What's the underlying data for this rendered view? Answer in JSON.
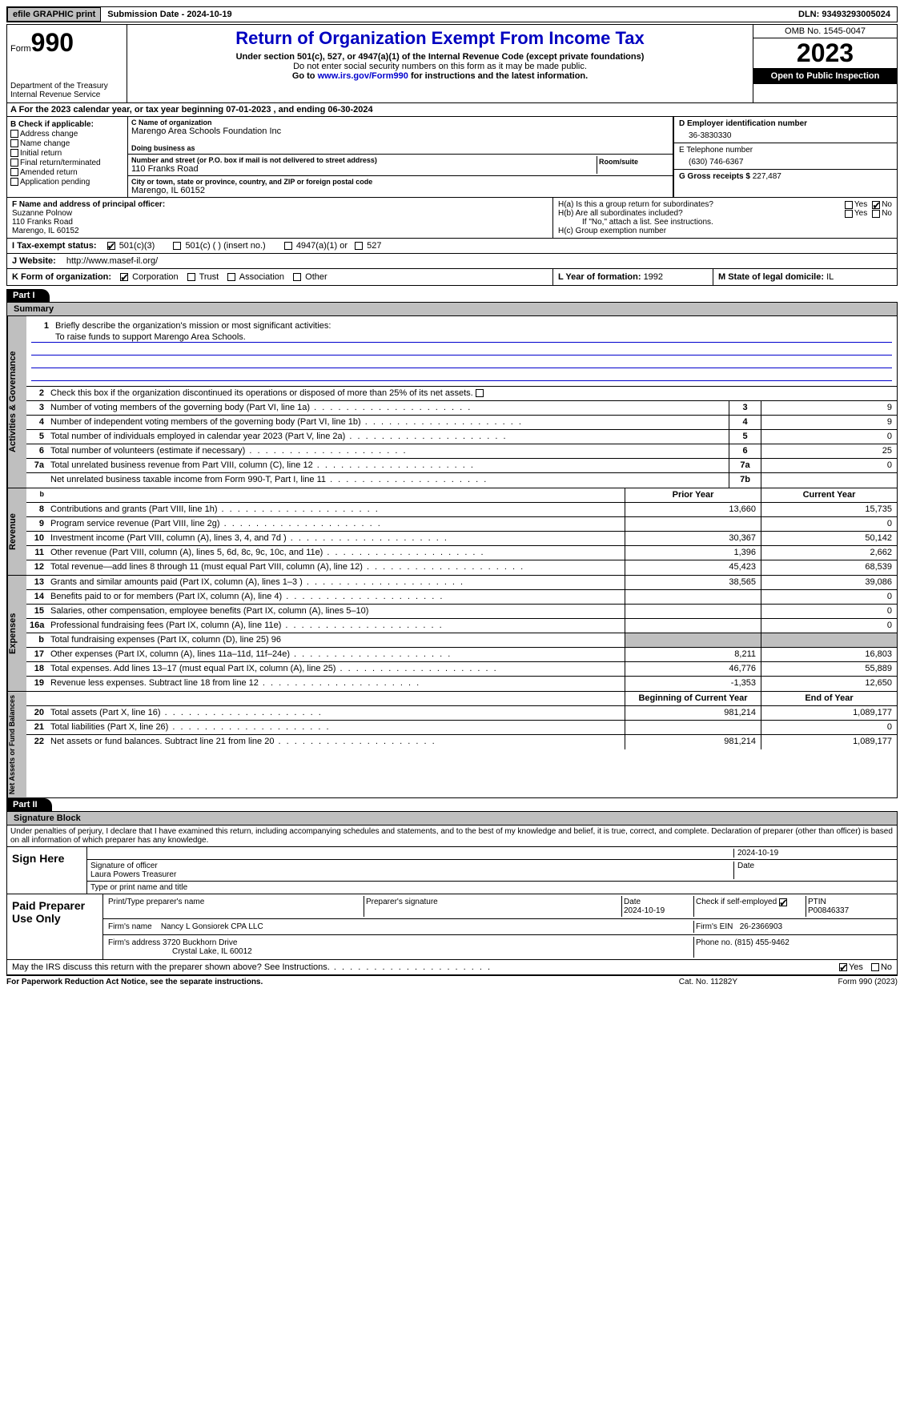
{
  "top": {
    "efile": "efile GRAPHIC print",
    "submission_label": "Submission Date - 2024-10-19",
    "dln": "DLN: 93493293005024"
  },
  "header": {
    "form_prefix": "Form",
    "form_no": "990",
    "dept": "Department of the Treasury\nInternal Revenue Service",
    "title": "Return of Organization Exempt From Income Tax",
    "sub1": "Under section 501(c), 527, or 4947(a)(1) of the Internal Revenue Code (except private foundations)",
    "sub2": "Do not enter social security numbers on this form as it may be made public.",
    "sub3_pre": "Go to ",
    "sub3_link": "www.irs.gov/Form990",
    "sub3_post": " for instructions and the latest information.",
    "omb": "OMB No. 1545-0047",
    "year": "2023",
    "inspection": "Open to Public Inspection"
  },
  "A": {
    "text": "A For the 2023 calendar year, or tax year beginning 07-01-2023   , and ending 06-30-2024"
  },
  "B": {
    "label": "B Check if applicable:",
    "items": [
      "Address change",
      "Name change",
      "Initial return",
      "Final return/terminated",
      "Amended return",
      "Application pending"
    ]
  },
  "C": {
    "name_lbl": "C Name of organization",
    "name": "Marengo Area Schools Foundation Inc",
    "dba_lbl": "Doing business as",
    "dba": "",
    "addr_lbl": "Number and street (or P.O. box if mail is not delivered to street address)",
    "addr": "110 Franks Road",
    "room_lbl": "Room/suite",
    "city_lbl": "City or town, state or province, country, and ZIP or foreign postal code",
    "city": "Marengo, IL  60152"
  },
  "D": {
    "lbl": "D Employer identification number",
    "val": "36-3830330"
  },
  "E": {
    "lbl": "E Telephone number",
    "val": "(630) 746-6367"
  },
  "G": {
    "lbl": "G Gross receipts $ ",
    "val": "227,487"
  },
  "F": {
    "lbl": "F  Name and address of principal officer:",
    "name": "Suzanne Polnow",
    "addr1": "110 Franks Road",
    "addr2": "Marengo, IL  60152"
  },
  "H": {
    "a": "H(a)  Is this a group return for subordinates?",
    "b": "H(b)  Are all subordinates included?",
    "b2": "If \"No,\" attach a list. See instructions.",
    "c": "H(c)  Group exemption number",
    "yes": "Yes",
    "no": "No"
  },
  "I": {
    "lbl": "I  Tax-exempt status:",
    "o1": "501(c)(3)",
    "o2": "501(c) (  ) (insert no.)",
    "o3": "4947(a)(1) or",
    "o4": "527"
  },
  "J": {
    "lbl": "J  Website:",
    "val": "http://www.masef-il.org/"
  },
  "K": {
    "lbl": "K Form of organization:",
    "o1": "Corporation",
    "o2": "Trust",
    "o3": "Association",
    "o4": "Other"
  },
  "L": {
    "lbl": "L Year of formation: ",
    "val": "1992"
  },
  "M": {
    "lbl": "M State of legal domicile: ",
    "val": "IL"
  },
  "part1": {
    "hdr": "Part I",
    "title": "Summary",
    "q1": "Briefly describe the organization's mission or most significant activities:",
    "q1v": "To raise funds to support Marengo Area Schools.",
    "q2": "Check this box        if the organization discontinued its operations or disposed of more than 25% of its net assets.",
    "vtab1": "Activities & Governance",
    "vtab2": "Revenue",
    "vtab3": "Expenses",
    "vtab4": "Net Assets or Fund Balances",
    "rows_ag": [
      {
        "n": "3",
        "t": "Number of voting members of the governing body (Part VI, line 1a)",
        "c": "3",
        "v": "9"
      },
      {
        "n": "4",
        "t": "Number of independent voting members of the governing body (Part VI, line 1b)",
        "c": "4",
        "v": "9"
      },
      {
        "n": "5",
        "t": "Total number of individuals employed in calendar year 2023 (Part V, line 2a)",
        "c": "5",
        "v": "0"
      },
      {
        "n": "6",
        "t": "Total number of volunteers (estimate if necessary)",
        "c": "6",
        "v": "25"
      },
      {
        "n": "7a",
        "t": "Total unrelated business revenue from Part VIII, column (C), line 12",
        "c": "7a",
        "v": "0"
      },
      {
        "n": "",
        "t": "Net unrelated business taxable income from Form 990-T, Part I, line 11",
        "c": "7b",
        "v": ""
      }
    ],
    "hdr_prior": "Prior Year",
    "hdr_curr": "Current Year",
    "rows_rev": [
      {
        "n": "8",
        "t": "Contributions and grants (Part VIII, line 1h)",
        "p": "13,660",
        "c": "15,735"
      },
      {
        "n": "9",
        "t": "Program service revenue (Part VIII, line 2g)",
        "p": "",
        "c": "0"
      },
      {
        "n": "10",
        "t": "Investment income (Part VIII, column (A), lines 3, 4, and 7d )",
        "p": "30,367",
        "c": "50,142"
      },
      {
        "n": "11",
        "t": "Other revenue (Part VIII, column (A), lines 5, 6d, 8c, 9c, 10c, and 11e)",
        "p": "1,396",
        "c": "2,662"
      },
      {
        "n": "12",
        "t": "Total revenue—add lines 8 through 11 (must equal Part VIII, column (A), line 12)",
        "p": "45,423",
        "c": "68,539"
      }
    ],
    "rows_exp": [
      {
        "n": "13",
        "t": "Grants and similar amounts paid (Part IX, column (A), lines 1–3 )",
        "p": "38,565",
        "c": "39,086"
      },
      {
        "n": "14",
        "t": "Benefits paid to or for members (Part IX, column (A), line 4)",
        "p": "",
        "c": "0"
      },
      {
        "n": "15",
        "t": "Salaries, other compensation, employee benefits (Part IX, column (A), lines 5–10)",
        "p": "",
        "c": "0"
      },
      {
        "n": "16a",
        "t": "Professional fundraising fees (Part IX, column (A), line 11e)",
        "p": "",
        "c": "0"
      },
      {
        "n": "b",
        "t": "Total fundraising expenses (Part IX, column (D), line 25) 96",
        "p": "shade",
        "c": "shade"
      },
      {
        "n": "17",
        "t": "Other expenses (Part IX, column (A), lines 11a–11d, 11f–24e)",
        "p": "8,211",
        "c": "16,803"
      },
      {
        "n": "18",
        "t": "Total expenses. Add lines 13–17 (must equal Part IX, column (A), line 25)",
        "p": "46,776",
        "c": "55,889"
      },
      {
        "n": "19",
        "t": "Revenue less expenses. Subtract line 18 from line 12",
        "p": "-1,353",
        "c": "12,650"
      }
    ],
    "hdr_boy": "Beginning of Current Year",
    "hdr_eoy": "End of Year",
    "rows_na": [
      {
        "n": "20",
        "t": "Total assets (Part X, line 16)",
        "p": "981,214",
        "c": "1,089,177"
      },
      {
        "n": "21",
        "t": "Total liabilities (Part X, line 26)",
        "p": "",
        "c": "0"
      },
      {
        "n": "22",
        "t": "Net assets or fund balances. Subtract line 21 from line 20",
        "p": "981,214",
        "c": "1,089,177"
      }
    ]
  },
  "part2": {
    "hdr": "Part II",
    "title": "Signature Block",
    "decl": "Under penalties of perjury, I declare that I have examined this return, including accompanying schedules and statements, and to the best of my knowledge and belief, it is true, correct, and complete. Declaration of preparer (other than officer) is based on all information of which preparer has any knowledge.",
    "sign_here": "Sign Here",
    "sig_officer": "Signature of officer",
    "sig_date": "2024-10-19",
    "date_lbl": "Date",
    "officer_name": "Laura Powers Treasurer",
    "type_name": "Type or print name and title",
    "paid": "Paid Preparer Use Only",
    "prep_name_lbl": "Print/Type preparer's name",
    "prep_sig_lbl": "Preparer's signature",
    "prep_date_lbl": "Date",
    "prep_date": "2024-10-19",
    "self_emp": "Check        if self-employed",
    "ptin_lbl": "PTIN",
    "ptin": "P00846337",
    "firm_name_lbl": "Firm's name",
    "firm_name": "Nancy L Gonsiorek CPA LLC",
    "firm_ein_lbl": "Firm's EIN",
    "firm_ein": "26-2366903",
    "firm_addr_lbl": "Firm's address",
    "firm_addr1": "3720 Buckhorn Drive",
    "firm_addr2": "Crystal Lake, IL  60012",
    "phone_lbl": "Phone no.",
    "phone": "(815) 455-9462",
    "discuss": "May the IRS discuss this return with the preparer shown above? See Instructions.",
    "yes": "Yes",
    "no": "No"
  },
  "footer": {
    "l": "For Paperwork Reduction Act Notice, see the separate instructions.",
    "c": "Cat. No. 11282Y",
    "r": "Form 990 (2023)"
  }
}
